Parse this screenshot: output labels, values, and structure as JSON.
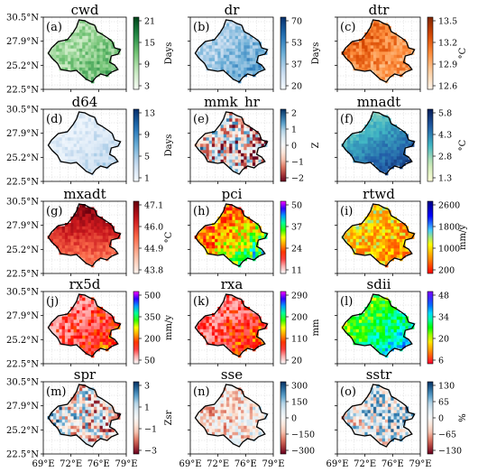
{
  "figure": {
    "y_tick_labels": [
      "30.5°N",
      "27.9°N",
      "25.2°N",
      "22.5°N"
    ],
    "x_tick_labels": [
      "69°E",
      "72°E",
      "76°E",
      "79°E"
    ]
  },
  "chart_data": [
    {
      "type": "heatmap",
      "title": "cwd",
      "panel_label": "(a)",
      "colormap": "greens",
      "colorbar_ticks": [
        "21",
        "15",
        "9",
        "3"
      ],
      "colorbar_label": "Days",
      "xlim": [
        69,
        79
      ],
      "ylim": [
        22.5,
        30.5
      ],
      "grid": true
    },
    {
      "type": "heatmap",
      "title": "dr",
      "panel_label": "(b)",
      "colormap": "blues",
      "colorbar_ticks": [
        "70",
        "53",
        "37",
        "20"
      ],
      "colorbar_label": "Days",
      "xlim": [
        69,
        79
      ],
      "ylim": [
        22.5,
        30.5
      ],
      "grid": true
    },
    {
      "type": "heatmap",
      "title": "dtr",
      "panel_label": "(c)",
      "colormap": "oranges",
      "colorbar_ticks": [
        "13.5",
        "13.2",
        "12.9",
        "12.6"
      ],
      "colorbar_label": "°C",
      "xlim": [
        69,
        79
      ],
      "ylim": [
        22.5,
        30.5
      ],
      "grid": true
    },
    {
      "type": "heatmap",
      "title": "d64",
      "panel_label": "(d)",
      "colormap": "blues",
      "colorbar_ticks": [
        "13",
        "9",
        "5",
        "1"
      ],
      "colorbar_label": "Days",
      "xlim": [
        69,
        79
      ],
      "ylim": [
        22.5,
        30.5
      ],
      "grid": true
    },
    {
      "type": "heatmap",
      "title": "mmk_hr",
      "panel_label": "(e)",
      "colormap": "rdbu",
      "colorbar_ticks": [
        "2",
        "1",
        "0",
        "−1",
        "−2"
      ],
      "colorbar_label": "Z",
      "xlim": [
        69,
        79
      ],
      "ylim": [
        22.5,
        30.5
      ],
      "grid": true
    },
    {
      "type": "heatmap",
      "title": "mnadt",
      "panel_label": "(f)",
      "colormap": "ylgnbu",
      "colorbar_ticks": [
        "5.8",
        "4.3",
        "2.8",
        "1.3"
      ],
      "colorbar_label": "°C",
      "xlim": [
        69,
        79
      ],
      "ylim": [
        22.5,
        30.5
      ],
      "grid": true
    },
    {
      "type": "heatmap",
      "title": "mxadt",
      "panel_label": "(g)",
      "colormap": "reds",
      "colorbar_ticks": [
        "47.1",
        "46.0",
        "44.9",
        "43.8"
      ],
      "colorbar_label": "°C",
      "xlim": [
        69,
        79
      ],
      "ylim": [
        22.5,
        30.5
      ],
      "grid": true
    },
    {
      "type": "heatmap",
      "title": "pci",
      "panel_label": "(h)",
      "colormap": "rainbow_white",
      "colorbar_ticks": [
        "50",
        "37",
        "24",
        "11"
      ],
      "colorbar_label": "",
      "xlim": [
        69,
        79
      ],
      "ylim": [
        22.5,
        30.5
      ],
      "grid": true
    },
    {
      "type": "heatmap",
      "title": "rtwd",
      "panel_label": "(i)",
      "colormap": "hot_blue",
      "colorbar_ticks": [
        "2600",
        "1800",
        "1000",
        "200"
      ],
      "colorbar_label": "mm/y",
      "xlim": [
        69,
        79
      ],
      "ylim": [
        22.5,
        30.5
      ],
      "grid": true
    },
    {
      "type": "heatmap",
      "title": "rx5d",
      "panel_label": "(j)",
      "colormap": "rainbow_white",
      "colorbar_ticks": [
        "500",
        "350",
        "200",
        "50"
      ],
      "colorbar_label": "mm/y",
      "xlim": [
        69,
        79
      ],
      "ylim": [
        22.5,
        30.5
      ],
      "grid": true
    },
    {
      "type": "heatmap",
      "title": "rxa",
      "panel_label": "(k)",
      "colormap": "rainbow_white",
      "colorbar_ticks": [
        "290",
        "200",
        "110",
        "20"
      ],
      "colorbar_label": "mm",
      "xlim": [
        69,
        79
      ],
      "ylim": [
        22.5,
        30.5
      ],
      "grid": true
    },
    {
      "type": "heatmap",
      "title": "sdii",
      "panel_label": "(l)",
      "colormap": "gist_rainbow",
      "colorbar_ticks": [
        "48",
        "34",
        "20",
        "6"
      ],
      "colorbar_label": "",
      "xlim": [
        69,
        79
      ],
      "ylim": [
        22.5,
        30.5
      ],
      "grid": true
    },
    {
      "type": "heatmap",
      "title": "spr",
      "panel_label": "(m)",
      "colormap": "rdbu",
      "colorbar_ticks": [
        "3",
        "1",
        "−1",
        "−3"
      ],
      "colorbar_label": "Zsr",
      "xlim": [
        69,
        79
      ],
      "ylim": [
        22.5,
        30.5
      ],
      "grid": true
    },
    {
      "type": "heatmap",
      "title": "sse",
      "panel_label": "(n)",
      "colormap": "rdbu",
      "colorbar_ticks": [
        "300",
        "150",
        "0",
        "−150",
        "−300"
      ],
      "colorbar_label": "",
      "xlim": [
        69,
        79
      ],
      "ylim": [
        22.5,
        30.5
      ],
      "grid": true
    },
    {
      "type": "heatmap",
      "title": "sstr",
      "panel_label": "(o)",
      "colormap": "rdbu",
      "colorbar_ticks": [
        "130",
        "65",
        "0",
        "−65",
        "−130"
      ],
      "colorbar_label": "%",
      "xlim": [
        69,
        79
      ],
      "ylim": [
        22.5,
        30.5
      ],
      "grid": true
    }
  ]
}
